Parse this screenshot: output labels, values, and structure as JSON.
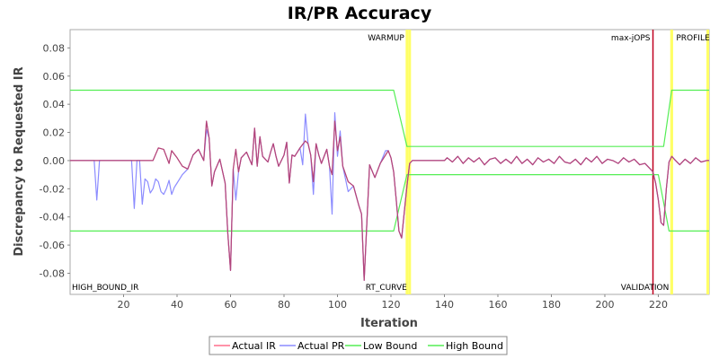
{
  "chart_data": {
    "type": "line",
    "title": "IR/PR Accuracy",
    "xlabel": "Iteration",
    "ylabel": "Discrepancy to Requested IR",
    "xlim": [
      0,
      239
    ],
    "ylim": [
      -0.095,
      0.093
    ],
    "x_ticks": [
      20,
      40,
      60,
      80,
      100,
      120,
      140,
      160,
      180,
      200,
      220
    ],
    "y_ticks": [
      -0.08,
      -0.06,
      -0.04,
      -0.02,
      0.0,
      0.02,
      0.04,
      0.06,
      0.08
    ],
    "x_tick_labels": [
      "20",
      "40",
      "60",
      "80",
      "100",
      "120",
      "140",
      "160",
      "180",
      "200",
      "220"
    ],
    "y_tick_labels": [
      "-0.08",
      "-0.06",
      "-0.04",
      "-0.02",
      "0.00",
      "0.02",
      "0.04",
      "0.06",
      "0.08"
    ],
    "grid": false,
    "legend_position": "bottom",
    "markers": [
      {
        "label": "WARMUP",
        "x": 126,
        "color": "#ffff66",
        "label_pos": "top-left"
      },
      {
        "label": "max-jOPS",
        "x": 218,
        "color": "#c00020",
        "label_pos": "top-left"
      },
      {
        "label": "PROFILE",
        "x": 225,
        "color": "#ffff66",
        "label_pos": "top-right"
      },
      {
        "label": "HIGH_BOUND_IR",
        "x": 0,
        "color": "#ffff66",
        "label_pos": "bottom-right"
      },
      {
        "label": "RT_CURVE",
        "x": 127,
        "color": "#ffff66",
        "label_pos": "bottom-left"
      },
      {
        "label": "VALIDATION",
        "x": 225,
        "color": "#ffff66",
        "label_pos": "bottom-left"
      },
      {
        "label": "",
        "x": 238.5,
        "color": "#ffff66",
        "label_pos": "none"
      }
    ],
    "series": [
      {
        "name": "Actual IR",
        "color": "#ff6e8c",
        "x": [
          0,
          31,
          33,
          35,
          37,
          38,
          40,
          42,
          44,
          46,
          48,
          50,
          51,
          52,
          53,
          54,
          56,
          58,
          59,
          60,
          61,
          62,
          63,
          64,
          66,
          68,
          69,
          70,
          71,
          72,
          74,
          75,
          76,
          77,
          78,
          80,
          81,
          82,
          83,
          84,
          86,
          88,
          89,
          90,
          91,
          92,
          93,
          94,
          96,
          97,
          98,
          99,
          100,
          101,
          102,
          104,
          106,
          108,
          109,
          110,
          112,
          114,
          116,
          118,
          119,
          120,
          121,
          122,
          123,
          124,
          126,
          127,
          128,
          140,
          141,
          143,
          145,
          147,
          149,
          151,
          153,
          155,
          157,
          159,
          161,
          163,
          165,
          167,
          169,
          171,
          173,
          175,
          177,
          179,
          181,
          183,
          185,
          187,
          189,
          191,
          193,
          195,
          197,
          199,
          201,
          203,
          205,
          207,
          209,
          211,
          213,
          215,
          216,
          217,
          218,
          219,
          220,
          221,
          222,
          223,
          224,
          225,
          226,
          228,
          230,
          232,
          234,
          236,
          238,
          239
        ],
        "y": [
          0,
          0,
          0.009,
          0.008,
          -0.002,
          0.007,
          0.002,
          -0.004,
          -0.006,
          0.004,
          0.008,
          0,
          0.028,
          0.016,
          -0.018,
          -0.008,
          0.001,
          -0.016,
          -0.052,
          -0.078,
          -0.006,
          0.008,
          -0.008,
          0.002,
          0.006,
          -0.003,
          0.023,
          -0.004,
          0.017,
          0.003,
          -0.001,
          0.006,
          0.012,
          0.003,
          -0.004,
          0.004,
          0.013,
          -0.016,
          0.004,
          0.003,
          0.009,
          0.014,
          0.012,
          0.004,
          -0.015,
          0.012,
          0.004,
          -0.002,
          0.008,
          -0.004,
          -0.01,
          0.028,
          0.007,
          0.017,
          -0.004,
          -0.015,
          -0.018,
          -0.032,
          -0.038,
          -0.085,
          -0.003,
          -0.012,
          -0.002,
          0.004,
          0.007,
          0.002,
          -0.008,
          -0.028,
          -0.05,
          -0.055,
          -0.018,
          -0.002,
          0,
          0,
          0.002,
          -0.001,
          0.003,
          -0.002,
          0.002,
          -0.001,
          0.002,
          -0.003,
          0.001,
          0.002,
          -0.002,
          0.001,
          -0.002,
          0.003,
          -0.002,
          0.001,
          -0.003,
          0.002,
          -0.001,
          0.001,
          -0.002,
          0.003,
          -0.001,
          -0.002,
          0.001,
          -0.003,
          0.002,
          -0.001,
          0.003,
          -0.002,
          0.001,
          0,
          -0.002,
          0.002,
          -0.001,
          0.001,
          -0.003,
          -0.002,
          -0.004,
          -0.006,
          -0.008,
          -0.016,
          -0.028,
          -0.044,
          -0.046,
          -0.02,
          -0.001,
          0.003,
          0.001,
          -0.003,
          0.001,
          -0.002,
          0.002,
          -0.001,
          0,
          0
        ]
      },
      {
        "name": "Actual PR",
        "color": "#8c8cff",
        "x": [
          0,
          9,
          10,
          11,
          12,
          13,
          14,
          15,
          16,
          17,
          18,
          19,
          20,
          21,
          22,
          23,
          24,
          25,
          26,
          27,
          28,
          29,
          30,
          31,
          32,
          33,
          34,
          35,
          36,
          37,
          38,
          39,
          40,
          42,
          44,
          46,
          48,
          50,
          51,
          52,
          53,
          54,
          56,
          58,
          59,
          60,
          61,
          62,
          63,
          64,
          66,
          68,
          69,
          70,
          71,
          72,
          74,
          75,
          76,
          77,
          78,
          80,
          81,
          82,
          83,
          84,
          86,
          87,
          88,
          89,
          90,
          91,
          92,
          93,
          94,
          96,
          97,
          98,
          99,
          100,
          101,
          102,
          104,
          106,
          108,
          109,
          110,
          112,
          114,
          116,
          118,
          119,
          120,
          121,
          122,
          123,
          124,
          126,
          127,
          128,
          140,
          141,
          143,
          145,
          147,
          149,
          151,
          153,
          155,
          157,
          159,
          161,
          163,
          165,
          167,
          169,
          171,
          173,
          175,
          177,
          179,
          181,
          183,
          185,
          187,
          189,
          191,
          193,
          195,
          197,
          199,
          201,
          203,
          205,
          207,
          209,
          211,
          213,
          215,
          216,
          217,
          218,
          219,
          220,
          221,
          222,
          223,
          224,
          225,
          226,
          228,
          230,
          232,
          234,
          236,
          238,
          239
        ],
        "y": [
          0,
          0,
          -0.028,
          0,
          0,
          0,
          0,
          0,
          0,
          0,
          0,
          0,
          0,
          0,
          0,
          0,
          -0.034,
          0,
          0,
          -0.031,
          -0.013,
          -0.015,
          -0.023,
          -0.02,
          -0.013,
          -0.015,
          -0.022,
          -0.024,
          -0.02,
          -0.014,
          -0.024,
          -0.019,
          -0.016,
          -0.01,
          -0.006,
          0.004,
          0.008,
          0,
          0.022,
          0.016,
          -0.018,
          -0.008,
          0.001,
          -0.016,
          -0.052,
          -0.078,
          -0.006,
          -0.028,
          -0.008,
          0.002,
          0.006,
          -0.003,
          0.023,
          -0.004,
          0.017,
          0.003,
          -0.001,
          0.006,
          0.012,
          0.003,
          -0.004,
          0.004,
          0.013,
          -0.016,
          0.004,
          0.003,
          0.009,
          -0.003,
          0.033,
          0.012,
          0.004,
          -0.024,
          0.012,
          0.004,
          -0.002,
          0.008,
          -0.004,
          -0.038,
          0.034,
          0.003,
          0.021,
          -0.004,
          -0.022,
          -0.018,
          -0.032,
          -0.038,
          -0.085,
          -0.003,
          -0.012,
          -0.002,
          0.007,
          0.007,
          0.002,
          -0.008,
          -0.028,
          -0.05,
          -0.055,
          -0.018,
          -0.002,
          0,
          0,
          0.002,
          -0.001,
          0.003,
          -0.002,
          0.002,
          -0.001,
          0.002,
          -0.003,
          0.001,
          0.002,
          -0.002,
          0.001,
          -0.002,
          0.003,
          -0.002,
          0.001,
          -0.003,
          0.002,
          -0.001,
          0.001,
          -0.002,
          0.003,
          -0.001,
          -0.002,
          0.001,
          -0.003,
          0.002,
          -0.001,
          0.003,
          -0.002,
          0.001,
          0,
          -0.002,
          0.002,
          -0.001,
          0.001,
          -0.003,
          -0.002,
          -0.004,
          -0.006,
          -0.008,
          -0.016,
          -0.028,
          -0.044,
          -0.046,
          -0.02,
          -0.001,
          0.003,
          0.001,
          -0.003,
          0.001,
          -0.002,
          0.002,
          -0.001,
          0,
          0
        ]
      },
      {
        "name": "Low Bound",
        "color": "#55ee55",
        "x": [
          0,
          121,
          126,
          217,
          220,
          224,
          225,
          239
        ],
        "y": [
          -0.05,
          -0.05,
          -0.01,
          -0.01,
          -0.01,
          -0.05,
          -0.05,
          -0.05
        ]
      },
      {
        "name": "High Bound",
        "color": "#55ee55",
        "x": [
          0,
          121,
          126,
          217,
          222,
          225,
          239
        ],
        "y": [
          0.05,
          0.05,
          0.01,
          0.01,
          0.01,
          0.05,
          0.05
        ]
      }
    ]
  }
}
